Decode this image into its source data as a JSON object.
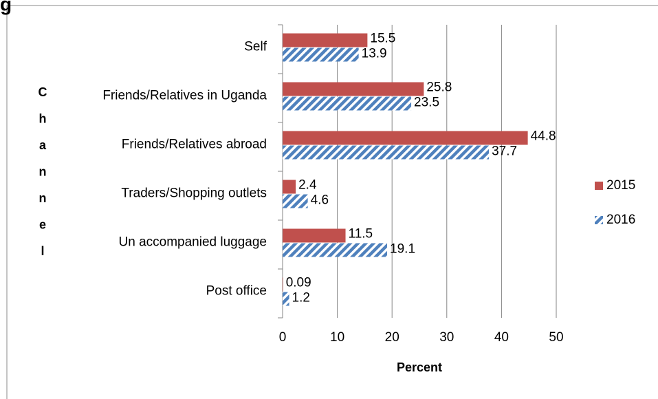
{
  "chart_data": {
    "type": "bar",
    "orientation": "horizontal",
    "title": "g",
    "categories": [
      "Self",
      "Friends/Relatives in Uganda",
      "Friends/Relatives abroad",
      "Traders/Shopping outlets",
      "Un accompanied luggage",
      "Post office"
    ],
    "series": [
      {
        "name": "2015",
        "color": "#c0504d",
        "values": [
          15.5,
          25.8,
          44.8,
          2.4,
          11.5,
          0.09
        ]
      },
      {
        "name": "2016",
        "color": "#4f81bd",
        "pattern": "hatch",
        "values": [
          13.9,
          23.5,
          37.7,
          4.6,
          19.1,
          1.2
        ]
      }
    ],
    "xlabel": "Percent",
    "ylabel": "Channel",
    "xlim": [
      0,
      50
    ],
    "xticks": [
      0,
      10,
      20,
      30,
      40,
      50
    ],
    "grid": true,
    "legend": "right"
  }
}
